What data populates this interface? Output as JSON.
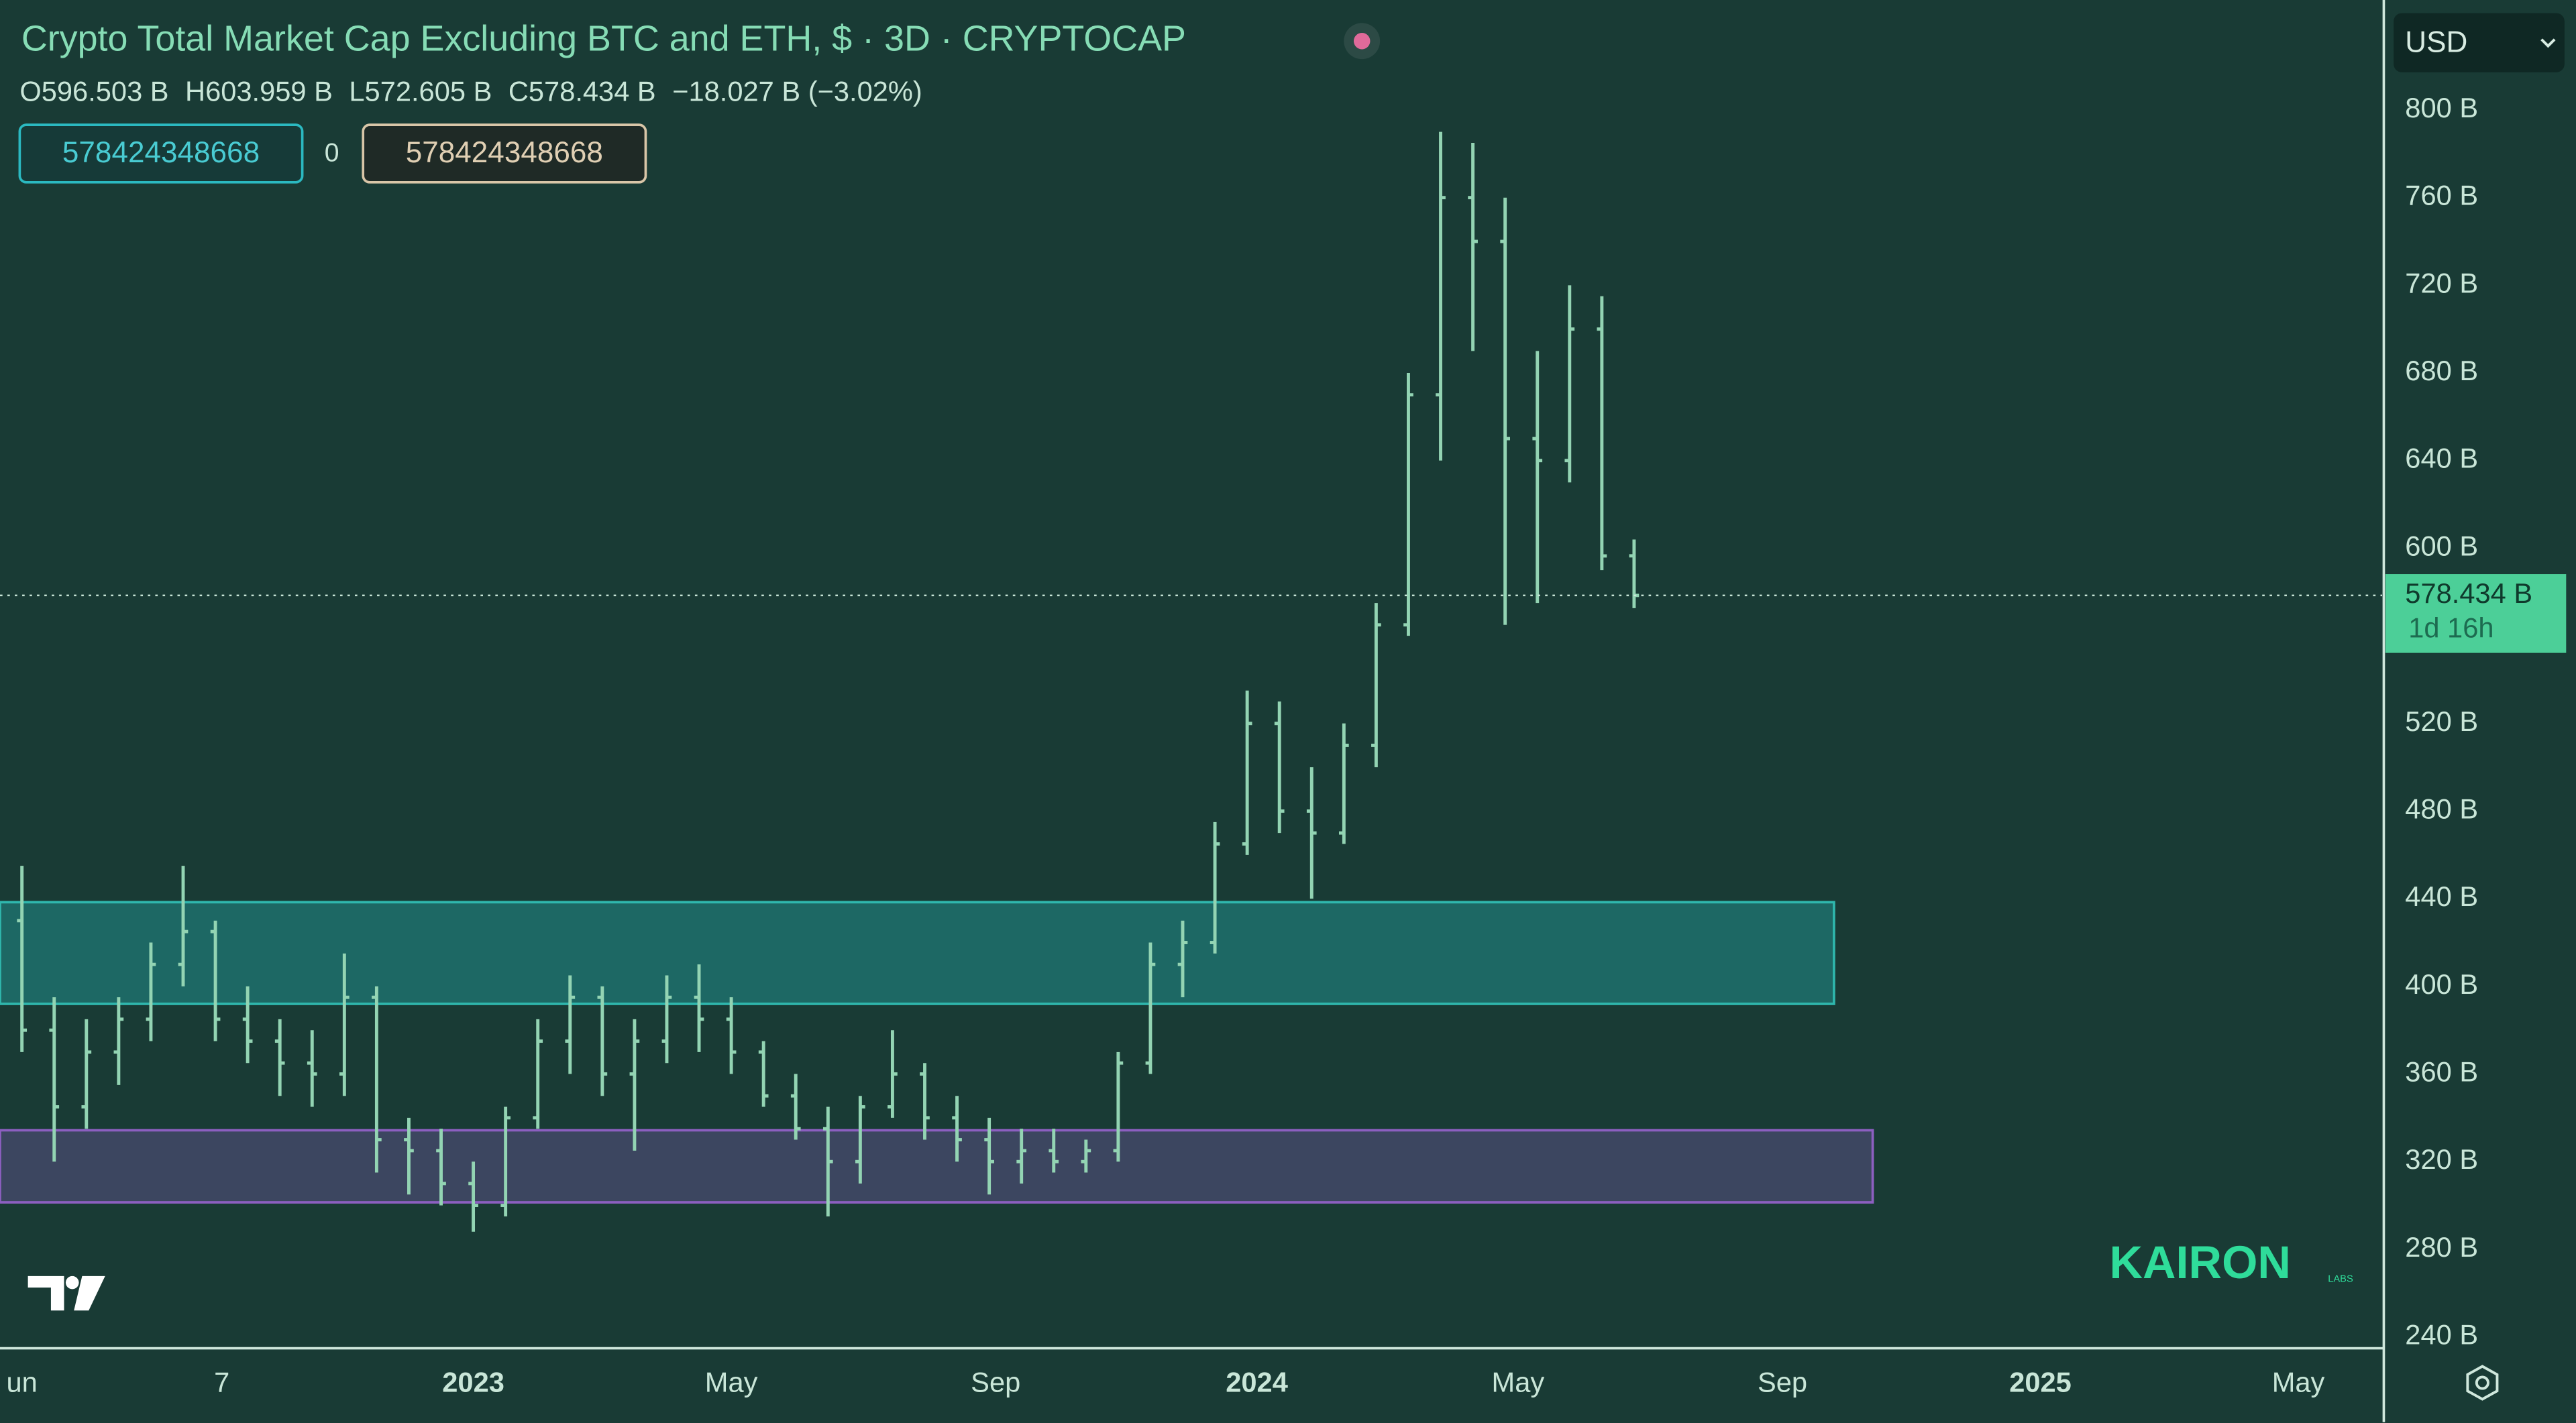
{
  "chart_data": {
    "type": "ohlc",
    "title": "Crypto Total Market Cap Excluding BTC and ETH, $ · 3D · CRYPTOCAP",
    "readout": [
      "O596.503 B",
      "H603.959 B",
      "L572.605 B",
      "C578.434 B",
      "−18.027 B (−3.02%)"
    ],
    "inputs": [
      "578424348668",
      "0",
      "578424348668"
    ],
    "currency": "USD",
    "watermark": {
      "name": "KAIRON",
      "sub": "LABS"
    },
    "color": "#93d4b3",
    "x": [
      -7,
      -6.5,
      -6,
      -5.5,
      -5,
      -4.5,
      -4,
      -3.5,
      -3,
      -2.5,
      -2,
      -1.5,
      -1,
      -0.5,
      0,
      0.5,
      1,
      1.5,
      2,
      2.5,
      3,
      3.5,
      4,
      4.5,
      5,
      5.5,
      6,
      6.5,
      7,
      7.5,
      8,
      8.5,
      9,
      9.5,
      10,
      10.5,
      11,
      11.5,
      12,
      12.5,
      13,
      13.5,
      14,
      14.5,
      15,
      15.5,
      16,
      16.5,
      17,
      17.5,
      18
    ],
    "open": [
      430,
      380,
      345,
      370,
      385,
      410,
      425,
      385,
      375,
      365,
      360,
      395,
      330,
      325,
      310,
      300,
      340,
      375,
      395,
      360,
      375,
      395,
      385,
      370,
      350,
      335,
      320,
      345,
      360,
      340,
      330,
      320,
      325,
      320,
      325,
      365,
      410,
      420,
      465,
      520,
      480,
      470,
      510,
      565,
      670,
      760,
      740,
      650,
      640,
      700,
      596.503
    ],
    "high": [
      455,
      395,
      385,
      395,
      420,
      455,
      430,
      400,
      385,
      380,
      415,
      400,
      340,
      335,
      320,
      345,
      385,
      405,
      400,
      385,
      405,
      410,
      395,
      375,
      360,
      345,
      350,
      380,
      365,
      350,
      340,
      335,
      335,
      330,
      370,
      420,
      430,
      475,
      535,
      530,
      500,
      520,
      575,
      680,
      790,
      785,
      760,
      690,
      720,
      715,
      603.959
    ],
    "low": [
      370,
      320,
      335,
      355,
      375,
      400,
      375,
      365,
      350,
      345,
      350,
      315,
      305,
      300,
      288,
      295,
      335,
      360,
      350,
      325,
      365,
      370,
      360,
      345,
      330,
      295,
      310,
      340,
      330,
      320,
      305,
      310,
      315,
      315,
      320,
      360,
      395,
      415,
      460,
      470,
      440,
      465,
      500,
      560,
      640,
      690,
      565,
      575,
      630,
      590,
      572.605
    ],
    "close": [
      380,
      345,
      370,
      385,
      410,
      425,
      385,
      375,
      365,
      360,
      395,
      330,
      325,
      310,
      300,
      340,
      375,
      395,
      360,
      375,
      395,
      385,
      370,
      350,
      335,
      320,
      345,
      360,
      340,
      330,
      320,
      325,
      320,
      325,
      365,
      410,
      420,
      465,
      520,
      480,
      470,
      510,
      565,
      670,
      760,
      740,
      650,
      640,
      700,
      596.461,
      578.434
    ],
    "zones": [
      {
        "x": [
          -7.34,
          21.1
        ],
        "y": [
          392,
          438.4
        ],
        "color": "#1d6864",
        "border": "#2fb7ad"
      },
      {
        "x": [
          -7.34,
          21.7
        ],
        "y": [
          301.4,
          334.3
        ],
        "color": "#3c4660",
        "border": "#8c5fc0"
      }
    ],
    "last_price": {
      "value": 578.434,
      "label": "578.434 B",
      "countdown": "1d 16h"
    },
    "xlim": [
      -7.34,
      29.6
    ],
    "xticks": [
      {
        "value": -7,
        "label": "un"
      },
      {
        "value": -3.9,
        "label": "7"
      },
      {
        "value": 0,
        "label": "2023"
      },
      {
        "value": 4,
        "label": "May"
      },
      {
        "value": 8.1,
        "label": "Sep"
      },
      {
        "value": 12.15,
        "label": "2024"
      },
      {
        "value": 16.2,
        "label": "May"
      },
      {
        "value": 20.3,
        "label": "Sep"
      },
      {
        "value": 24.3,
        "label": "2025"
      },
      {
        "value": 28.3,
        "label": "May"
      }
    ],
    "ylim": [
      234.8,
      850.2
    ],
    "yticks": [
      {
        "value": 240,
        "label": "240 B"
      },
      {
        "value": 280,
        "label": "280 B"
      },
      {
        "value": 320,
        "label": "320 B"
      },
      {
        "value": 360,
        "label": "360 B"
      },
      {
        "value": 400,
        "label": "400 B"
      },
      {
        "value": 440,
        "label": "440 B"
      },
      {
        "value": 480,
        "label": "480 B"
      },
      {
        "value": 520,
        "label": "520 B"
      },
      {
        "value": 600,
        "label": "600 B"
      },
      {
        "value": 640,
        "label": "640 B"
      },
      {
        "value": 680,
        "label": "680 B"
      },
      {
        "value": 720,
        "label": "720 B"
      },
      {
        "value": 760,
        "label": "760 B"
      },
      {
        "value": 800,
        "label": "800 B"
      }
    ],
    "grid": false
  }
}
